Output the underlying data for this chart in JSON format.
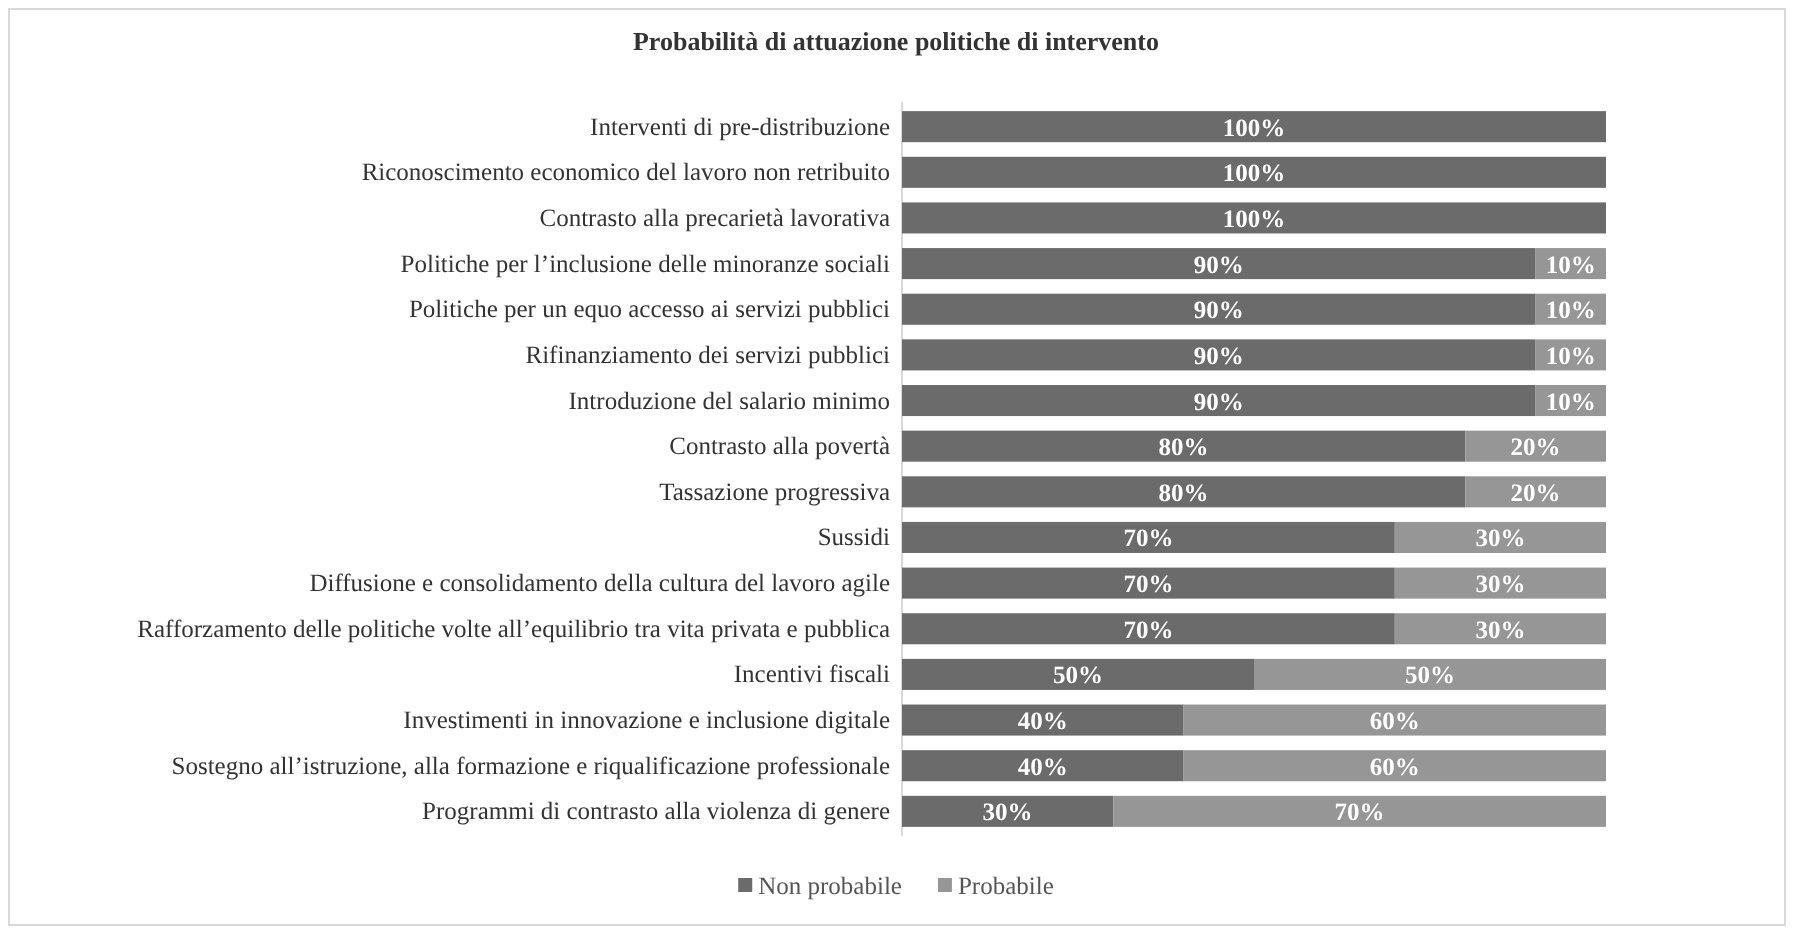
{
  "chart_data": {
    "type": "bar",
    "orientation": "horizontal",
    "stacked": true,
    "title": "Probabilità di attuazione politiche di intervento",
    "categories": [
      "Interventi di pre-distribuzione",
      "Riconoscimento economico del lavoro non retribuito",
      "Contrasto alla precarietà lavorativa",
      "Politiche per l’inclusione delle minoranze sociali",
      "Politiche per un equo accesso ai servizi pubblici",
      "Rifinanziamento dei servizi pubblici",
      "Introduzione del salario minimo",
      "Contrasto alla povertà",
      "Tassazione progressiva",
      "Sussidi",
      "Diffusione e consolidamento della cultura del lavoro agile",
      "Rafforzamento delle politiche volte all’equilibrio tra vita privata e pubblica",
      "Incentivi fiscali",
      "Investimenti in innovazione e inclusione digitale",
      "Sostegno all’istruzione, alla formazione e riqualificazione professionale",
      "Programmi di contrasto alla violenza di genere"
    ],
    "series": [
      {
        "name": "Non probabile",
        "color": "#6b6b6b",
        "values": [
          100,
          100,
          100,
          90,
          90,
          90,
          90,
          80,
          80,
          70,
          70,
          70,
          50,
          40,
          40,
          30
        ],
        "value_labels": [
          "100%",
          "100%",
          "100%",
          "90%",
          "90%",
          "90%",
          "90%",
          "80%",
          "80%",
          "70%",
          "70%",
          "70%",
          "50%",
          "40%",
          "40%",
          "30%"
        ]
      },
      {
        "name": "Probabile",
        "color": "#969696",
        "values": [
          0,
          0,
          0,
          10,
          10,
          10,
          10,
          20,
          20,
          30,
          30,
          30,
          50,
          60,
          60,
          70
        ],
        "value_labels": [
          null,
          null,
          null,
          "10%",
          "10%",
          "10%",
          "10%",
          "20%",
          "20%",
          "30%",
          "30%",
          "30%",
          "50%",
          "60%",
          "60%",
          "70%"
        ]
      }
    ],
    "xlim": [
      0,
      100
    ],
    "tick_labels": "y",
    "legend": "bottom"
  }
}
